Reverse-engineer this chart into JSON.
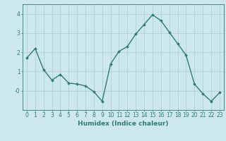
{
  "x": [
    0,
    1,
    2,
    3,
    4,
    5,
    6,
    7,
    8,
    9,
    10,
    11,
    12,
    13,
    14,
    15,
    16,
    17,
    18,
    19,
    20,
    21,
    22,
    23
  ],
  "y": [
    1.7,
    2.2,
    1.1,
    0.55,
    0.85,
    0.4,
    0.35,
    0.25,
    -0.05,
    -0.55,
    1.4,
    2.05,
    2.3,
    2.95,
    3.45,
    3.95,
    3.65,
    3.05,
    2.45,
    1.85,
    0.35,
    -0.15,
    -0.55,
    -0.1
  ],
  "line_color": "#2e7d6e",
  "marker": "D",
  "marker_size": 2.0,
  "linewidth": 1.0,
  "xlabel": "Humidex (Indice chaleur)",
  "xlim": [
    -0.5,
    23.5
  ],
  "ylim": [
    -1.0,
    4.5
  ],
  "ytick_vals": [
    0,
    1,
    2,
    3,
    4
  ],
  "ytick_labels": [
    "-0",
    "1",
    "2",
    "3",
    "4"
  ],
  "xtick_labels": [
    "0",
    "1",
    "2",
    "3",
    "4",
    "5",
    "6",
    "7",
    "8",
    "9",
    "10",
    "11",
    "12",
    "13",
    "14",
    "15",
    "16",
    "17",
    "18",
    "19",
    "20",
    "21",
    "22",
    "23"
  ],
  "bg_color": "#cce8ed",
  "grid_color": "#aacccc",
  "axes_color": "#2e7d6e",
  "tick_color": "#2e7d6e",
  "label_color": "#2e7d6e",
  "xlabel_fontsize": 6.5,
  "tick_fontsize": 5.5
}
